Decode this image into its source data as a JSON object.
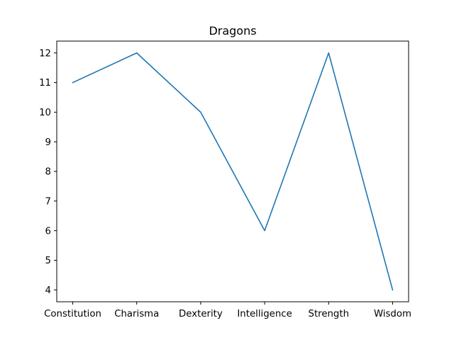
{
  "chart_data": {
    "type": "line",
    "title": "Dragons",
    "xlabel": "",
    "ylabel": "",
    "categories": [
      "Constitution",
      "Charisma",
      "Dexterity",
      "Intelligence",
      "Strength",
      "Wisdom"
    ],
    "series": [
      {
        "values": [
          11,
          12,
          10,
          6,
          12,
          4
        ],
        "color": "#1f77b4"
      }
    ],
    "yticks": [
      4,
      5,
      6,
      7,
      8,
      9,
      10,
      11,
      12
    ],
    "ylim": [
      3.6,
      12.4
    ],
    "grid": false,
    "legend": "none"
  }
}
